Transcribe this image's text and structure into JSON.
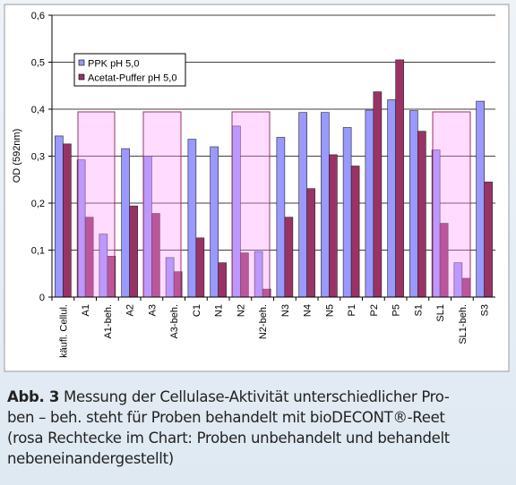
{
  "chart_data": {
    "type": "bar",
    "y_label": "OD (592nm)",
    "categories": [
      "käufl. Cellul.",
      "A1",
      "A1-beh.",
      "A2",
      "A3",
      "A3-beh.",
      "C1",
      "N1",
      "N2",
      "N2-beh.",
      "N3",
      "N4",
      "N5",
      "P1",
      "P2",
      "P5",
      "S1",
      "SL1",
      "SL1-beh.",
      "S3"
    ],
    "series": [
      {
        "name": "PPK pH 5,0",
        "color": "#9999ff",
        "values": [
          0.343,
          0.292,
          0.134,
          0.316,
          0.3,
          0.084,
          0.336,
          0.32,
          0.364,
          0.097,
          0.34,
          0.393,
          0.393,
          0.361,
          0.398,
          0.42,
          0.397,
          0.313,
          0.073,
          0.417
        ]
      },
      {
        "name": "Acetat-Puffer pH 5,0",
        "color": "#993366",
        "values": [
          0.326,
          0.17,
          0.087,
          0.194,
          0.178,
          0.054,
          0.126,
          0.073,
          0.094,
          0.017,
          0.17,
          0.231,
          0.303,
          0.279,
          0.437,
          0.505,
          0.353,
          0.157,
          0.04,
          0.245
        ]
      }
    ],
    "ylim": [
      0,
      0.6
    ],
    "yticks": [
      0,
      {
        "value": 0.1,
        "label": "0,1"
      },
      {
        "value": 0.2,
        "label": "0,2"
      },
      {
        "value": 0.3,
        "label": "0,3"
      },
      {
        "value": 0.4,
        "label": "0,4"
      },
      {
        "value": 0.5,
        "label": "0,5"
      },
      {
        "value": 0.6,
        "label": "0,6"
      }
    ],
    "grid": true,
    "legend": "upper left"
  },
  "caption": {
    "label": "Abb. 3",
    "lines": [
      "Messung der Cellulase-Aktivität unterschiedlicher Pro-",
      "ben – beh. steht für Proben behandelt mit bioDECONT®-Reet",
      "(rosa Rechtecke im Chart: Proben unbehandelt und behandelt",
      "nebeneinandergestellt)"
    ]
  }
}
